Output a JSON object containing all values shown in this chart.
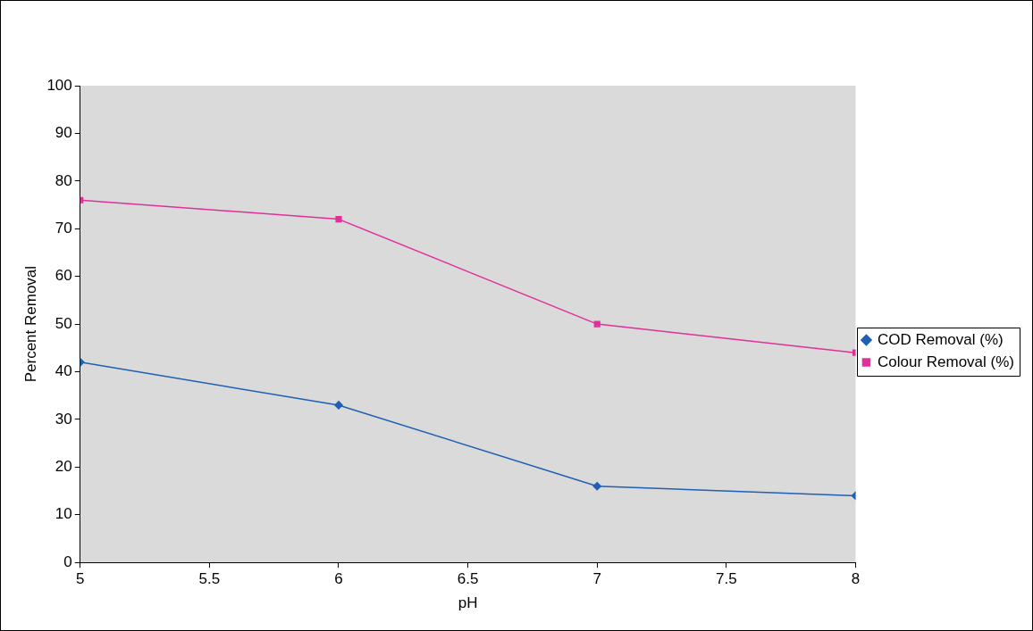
{
  "chart_data": {
    "type": "line",
    "xlabel": "pH",
    "ylabel": "Percent Removal",
    "x": [
      5,
      6,
      7,
      8
    ],
    "series": [
      {
        "name": "COD Removal (%)",
        "color": "#1f5fb4",
        "marker": "diamond",
        "values": [
          42,
          33,
          16,
          14
        ]
      },
      {
        "name": "Colour Removal (%)",
        "color": "#e0309a",
        "marker": "square",
        "values": [
          76,
          72,
          50,
          44
        ]
      }
    ],
    "xlim": [
      5,
      8
    ],
    "xticks": [
      5,
      5.5,
      6,
      6.5,
      7,
      7.5,
      8
    ],
    "ylim": [
      0,
      100
    ],
    "yticks": [
      0,
      10,
      20,
      30,
      40,
      50,
      60,
      70,
      80,
      90,
      100
    ],
    "grid": false,
    "legend": "right",
    "line_style": "solid"
  }
}
